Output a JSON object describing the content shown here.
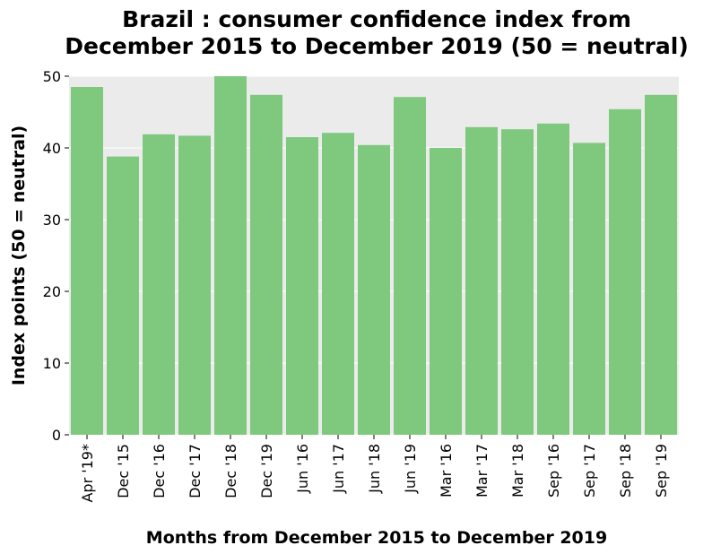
{
  "chart_data": {
    "type": "bar",
    "title_line1": "Brazil : consumer confidence index from",
    "title_line2": "December 2015 to December 2019 (50 = neutral)",
    "xlabel": "Months from December 2015 to December 2019",
    "ylabel": "Index points (50 = neutral)",
    "categories": [
      "Apr '19*",
      "Dec '15",
      "Dec '16",
      "Dec '17",
      "Dec '18",
      "Dec '19",
      "Jun '16",
      "Jun '17",
      "Jun '18",
      "Jun '19",
      "Mar '16",
      "Mar '17",
      "Mar '18",
      "Sep '16",
      "Sep '17",
      "Sep '18",
      "Sep '19"
    ],
    "values": [
      48.5,
      38.8,
      41.9,
      41.7,
      50.0,
      47.4,
      41.5,
      42.1,
      40.4,
      47.1,
      40.0,
      42.9,
      42.6,
      43.4,
      40.7,
      45.4,
      47.4
    ],
    "ylim": [
      0,
      50
    ],
    "yticks": [
      0,
      10,
      20,
      30,
      40,
      50
    ],
    "grid": true,
    "legend": "none",
    "bar_color": "#7fc97f",
    "panel_color": "#ebebeb"
  }
}
